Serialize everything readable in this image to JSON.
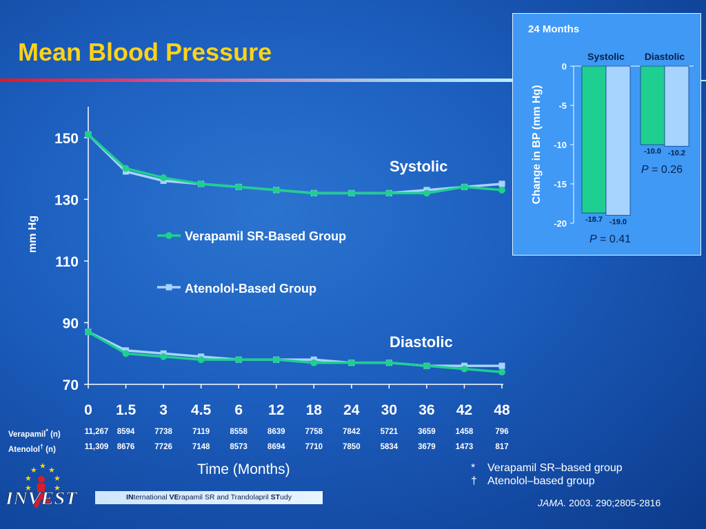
{
  "title": "Mean Blood Pressure",
  "colors": {
    "verapamil": "#1fcf8f",
    "atenolol": "#a7d4ff",
    "title": "#ffd21a",
    "inset_bg": "#3f99f5"
  },
  "chart_data": [
    {
      "type": "line",
      "ylabel": "mm Hg",
      "xlabel": "Time (Months)",
      "x": [
        "0",
        "1.5",
        "3",
        "4.5",
        "6",
        "12",
        "18",
        "24",
        "30",
        "36",
        "42",
        "48"
      ],
      "ylim": [
        70,
        160
      ],
      "yticks": [
        70,
        90,
        110,
        130,
        150
      ],
      "legend": [
        "Verapamil SR-Based Group",
        "Atenolol-Based Group"
      ],
      "annotations": [
        "Systolic",
        "Diastolic"
      ],
      "series": [
        {
          "name": "Verapamil SR-Based Group",
          "group": "Systolic",
          "values": [
            151,
            140,
            137,
            135,
            134,
            133,
            132,
            132,
            132,
            132,
            134,
            133
          ]
        },
        {
          "name": "Atenolol-Based Group",
          "group": "Systolic",
          "values": [
            151,
            139,
            136,
            135,
            134,
            133,
            132,
            132,
            132,
            133,
            134,
            135
          ]
        },
        {
          "name": "Verapamil SR-Based Group",
          "group": "Diastolic",
          "values": [
            87,
            80,
            79,
            78,
            78,
            78,
            77,
            77,
            77,
            76,
            75,
            74
          ]
        },
        {
          "name": "Atenolol-Based Group",
          "group": "Diastolic",
          "values": [
            87,
            81,
            80,
            79,
            78,
            78,
            78,
            77,
            77,
            76,
            76,
            76
          ]
        }
      ]
    },
    {
      "type": "bar",
      "title": "24 Months",
      "ylabel": "Change in BP (mm Hg)",
      "categories": [
        "Systolic",
        "Diastolic"
      ],
      "ylim": [
        -20,
        0
      ],
      "yticks": [
        0,
        -5,
        -10,
        -15,
        -20
      ],
      "series": [
        {
          "name": "Verapamil SR-Based Group",
          "values": [
            -18.7,
            -10.0
          ],
          "labels": [
            "-18.7",
            "-10.0"
          ]
        },
        {
          "name": "Atenolol-Based Group",
          "values": [
            -19.0,
            -10.2
          ],
          "labels": [
            "-19.0",
            "-10.2"
          ]
        }
      ],
      "p_values": [
        "0.41",
        "0.26"
      ],
      "p_label": "P"
    }
  ],
  "counts": {
    "verapamil_label": "Verapamil",
    "verapamil_mark": "*",
    "atenolol_label": "Atenolol",
    "atenolol_mark": "†",
    "n_label": "(n)",
    "verapamil": [
      "11,267",
      "8594",
      "7738",
      "7119",
      "8558",
      "8639",
      "7758",
      "7842",
      "5721",
      "3659",
      "1458",
      "796"
    ],
    "atenolol": [
      "11,309",
      "8676",
      "7726",
      "7148",
      "8573",
      "8694",
      "7710",
      "7850",
      "5834",
      "3679",
      "1473",
      "817"
    ]
  },
  "footnotes": [
    {
      "symbol": "*",
      "text": "Verapamil SR–based group"
    },
    {
      "symbol": "†",
      "text": "Atenolol–based group"
    }
  ],
  "citation": {
    "journal": "JAMA.",
    "rest": " 2003. 290;2805-2816"
  },
  "logo": {
    "text": "INVEST",
    "icon": "invest-stars-figure-logo"
  },
  "study_name": {
    "p1b": "IN",
    "p1": "ternational ",
    "p2b": "VE",
    "p2": "rapamil SR and Trandolapril ",
    "p3b": "ST",
    "p3": "udy"
  }
}
